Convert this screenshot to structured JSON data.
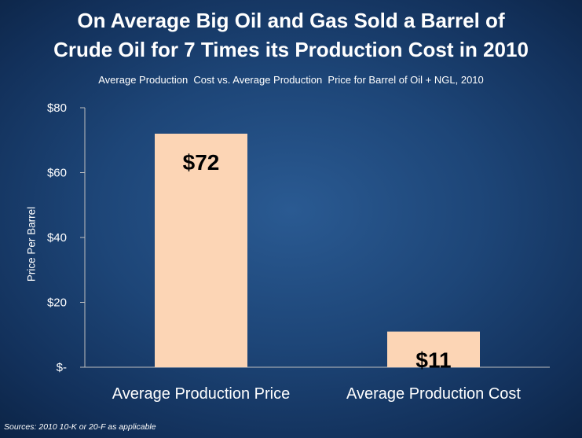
{
  "title_line1": "On Average Big Oil and Gas Sold a Barrel of",
  "title_line2": "Crude Oil for 7 Times its Production Cost in 2010",
  "subtitle": "Average Production  Cost vs. Average Production  Price for Barrel of Oil + NGL, 2010",
  "source": "Sources:  2010 10-K or 20-F as applicable",
  "colors": {
    "bar_fill": "#fcd5b5",
    "axis": "#bfbfbf",
    "text": "#ffffff",
    "data_label": "#000000"
  },
  "chart_data": {
    "type": "bar",
    "categories": [
      "Average Production Price",
      "Average Production Cost"
    ],
    "values": [
      72,
      11
    ],
    "data_labels": [
      "$72",
      "$11"
    ],
    "ylabel": "Price Per Barrel",
    "ylim": [
      0,
      80
    ],
    "yticks": [
      0,
      20,
      40,
      60,
      80
    ],
    "ytick_labels": [
      "$-",
      "$20",
      "$40",
      "$60",
      "$80"
    ],
    "grid": false,
    "legend": "none"
  }
}
